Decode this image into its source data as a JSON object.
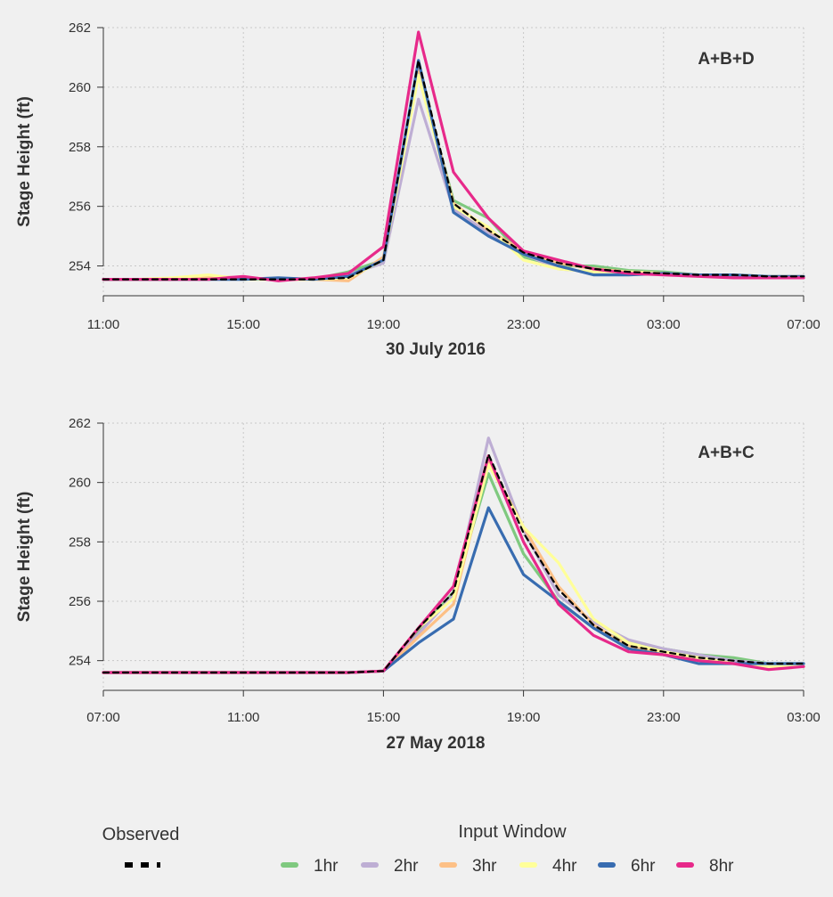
{
  "chart_data": [
    {
      "type": "line",
      "panel_label": "A+B+D",
      "xlabel": "30 July 2016",
      "ylabel": "Stage Height (ft)",
      "x_unit": "hours since 11:00",
      "xlim": [
        0,
        20
      ],
      "ylim": [
        253,
        262
      ],
      "xticks": [
        0,
        4,
        8,
        12,
        16,
        20
      ],
      "xtick_labels": [
        "11:00",
        "15:00",
        "19:00",
        "23:00",
        "03:00",
        "07:00"
      ],
      "yticks": [
        254,
        256,
        258,
        260,
        262
      ],
      "ytick_labels": [
        "254",
        "256",
        "258",
        "260",
        "262"
      ],
      "grid": true,
      "x": [
        0,
        1,
        2,
        3,
        4,
        5,
        6,
        7,
        8,
        9,
        10,
        11,
        12,
        13,
        14,
        15,
        16,
        17,
        18,
        19,
        20
      ],
      "series": [
        {
          "name": "1hr",
          "values": [
            253.55,
            253.55,
            253.55,
            253.6,
            253.6,
            253.55,
            253.55,
            253.8,
            254.2,
            260.5,
            256.2,
            255.6,
            254.3,
            254.0,
            254.0,
            253.85,
            253.8,
            253.7,
            253.7,
            253.65,
            253.65
          ]
        },
        {
          "name": "2hr",
          "values": [
            253.55,
            253.55,
            253.55,
            253.6,
            253.6,
            253.55,
            253.55,
            253.7,
            254.1,
            259.6,
            255.9,
            255.1,
            254.4,
            253.9,
            253.8,
            253.75,
            253.75,
            253.7,
            253.7,
            253.65,
            253.65
          ]
        },
        {
          "name": "3hr",
          "values": [
            253.55,
            253.55,
            253.55,
            253.65,
            253.6,
            253.55,
            253.55,
            253.5,
            254.3,
            260.6,
            256.1,
            255.2,
            254.5,
            254.1,
            253.9,
            253.8,
            253.75,
            253.7,
            253.7,
            253.65,
            253.65
          ]
        },
        {
          "name": "4hr",
          "values": [
            253.55,
            253.55,
            253.6,
            253.7,
            253.55,
            253.55,
            253.55,
            253.6,
            254.2,
            260.4,
            256.0,
            255.3,
            254.2,
            253.9,
            253.8,
            253.8,
            253.75,
            253.7,
            253.7,
            253.65,
            253.65
          ]
        },
        {
          "name": "6hr",
          "values": [
            253.55,
            253.55,
            253.55,
            253.55,
            253.55,
            253.6,
            253.55,
            253.65,
            254.2,
            260.9,
            255.8,
            255.0,
            254.4,
            254.0,
            253.7,
            253.7,
            253.75,
            253.7,
            253.7,
            253.65,
            253.65
          ]
        },
        {
          "name": "8hr",
          "values": [
            253.55,
            253.55,
            253.55,
            253.55,
            253.65,
            253.5,
            253.6,
            253.75,
            254.65,
            261.85,
            257.15,
            255.6,
            254.5,
            254.2,
            253.9,
            253.75,
            253.7,
            253.65,
            253.6,
            253.6,
            253.6
          ]
        },
        {
          "name": "Observed",
          "values": [
            253.55,
            253.55,
            253.55,
            253.55,
            253.55,
            253.55,
            253.55,
            253.6,
            254.2,
            260.9,
            256.1,
            255.2,
            254.45,
            254.1,
            253.9,
            253.8,
            253.75,
            253.7,
            253.7,
            253.65,
            253.65
          ]
        }
      ]
    },
    {
      "type": "line",
      "panel_label": "A+B+C",
      "xlabel": "27 May 2018",
      "ylabel": "Stage Height (ft)",
      "x_unit": "hours since 07:00",
      "xlim": [
        0,
        20
      ],
      "ylim": [
        253,
        262
      ],
      "xticks": [
        0,
        4,
        8,
        12,
        16,
        20
      ],
      "xtick_labels": [
        "07:00",
        "11:00",
        "15:00",
        "19:00",
        "23:00",
        "03:00"
      ],
      "yticks": [
        254,
        256,
        258,
        260,
        262
      ],
      "ytick_labels": [
        "254",
        "256",
        "258",
        "260",
        "262"
      ],
      "grid": true,
      "x": [
        0,
        1,
        2,
        3,
        4,
        5,
        6,
        7,
        8,
        9,
        10,
        11,
        12,
        13,
        14,
        15,
        16,
        17,
        18,
        19,
        20
      ],
      "series": [
        {
          "name": "1hr",
          "values": [
            253.6,
            253.6,
            253.6,
            253.6,
            253.6,
            253.6,
            253.6,
            253.6,
            253.65,
            255.0,
            256.3,
            260.3,
            257.6,
            256.0,
            255.1,
            254.6,
            254.4,
            254.2,
            254.1,
            253.9,
            253.9
          ]
        },
        {
          "name": "2hr",
          "values": [
            253.6,
            253.6,
            253.6,
            253.6,
            253.6,
            253.6,
            253.6,
            253.6,
            253.65,
            254.9,
            256.2,
            261.5,
            258.4,
            256.2,
            255.3,
            254.7,
            254.4,
            254.2,
            254.0,
            253.9,
            253.9
          ]
        },
        {
          "name": "3hr",
          "values": [
            253.6,
            253.6,
            253.6,
            253.6,
            253.6,
            253.6,
            253.6,
            253.6,
            253.65,
            254.8,
            255.9,
            260.7,
            258.5,
            256.5,
            255.2,
            254.5,
            254.2,
            254.1,
            253.9,
            253.8,
            253.8
          ]
        },
        {
          "name": "4hr",
          "values": [
            253.6,
            253.6,
            253.6,
            253.6,
            253.6,
            253.6,
            253.6,
            253.6,
            253.65,
            255.1,
            256.1,
            260.6,
            258.5,
            257.3,
            255.4,
            254.6,
            254.3,
            254.1,
            253.9,
            253.8,
            253.8
          ]
        },
        {
          "name": "6hr",
          "values": [
            253.6,
            253.6,
            253.6,
            253.6,
            253.6,
            253.6,
            253.6,
            253.6,
            253.65,
            254.6,
            255.4,
            259.15,
            256.9,
            256.0,
            255.1,
            254.4,
            254.2,
            253.9,
            253.9,
            253.9,
            253.9
          ]
        },
        {
          "name": "8hr",
          "values": [
            253.6,
            253.6,
            253.6,
            253.6,
            253.6,
            253.6,
            253.6,
            253.6,
            253.65,
            255.1,
            256.5,
            260.9,
            258.0,
            255.9,
            254.85,
            254.3,
            254.2,
            254.0,
            253.9,
            253.7,
            253.8
          ]
        },
        {
          "name": "Observed",
          "values": [
            253.6,
            253.6,
            253.6,
            253.6,
            253.6,
            253.6,
            253.6,
            253.6,
            253.65,
            255.1,
            256.3,
            260.95,
            258.3,
            256.4,
            255.2,
            254.5,
            254.3,
            254.1,
            254.0,
            253.9,
            253.9
          ]
        }
      ]
    }
  ],
  "legend": {
    "observed_title": "Observed",
    "input_window_title": "Input Window",
    "items": [
      {
        "name": "1hr",
        "color": "#7fc97f"
      },
      {
        "name": "2hr",
        "color": "#beaed4"
      },
      {
        "name": "3hr",
        "color": "#fdc086"
      },
      {
        "name": "4hr",
        "color": "#ffff99"
      },
      {
        "name": "6hr",
        "color": "#386cb0"
      },
      {
        "name": "8hr",
        "color": "#e7298a"
      }
    ],
    "observed_color": "#000000"
  }
}
